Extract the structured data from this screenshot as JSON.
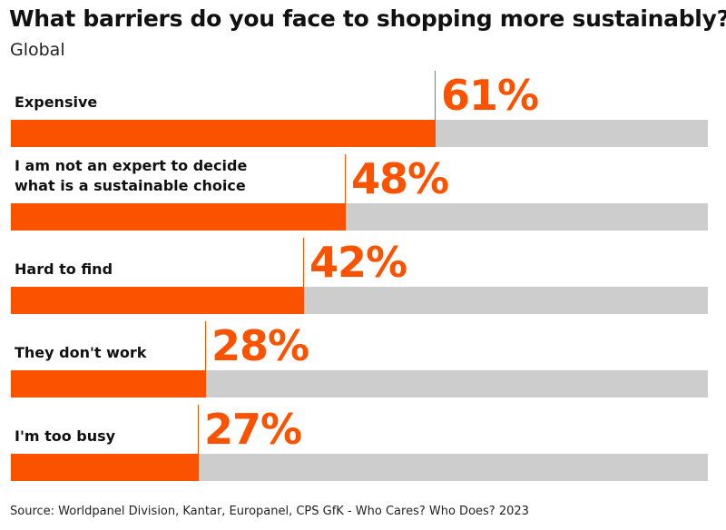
{
  "chart_data": {
    "type": "bar",
    "orientation": "horizontal",
    "title": "What barriers do you face to shopping more sustainably?",
    "subtitle": "Global",
    "categories": [
      [
        "Expensive"
      ],
      [
        "I am not an expert to decide",
        "what is a sustainable choice"
      ],
      [
        "Hard to find"
      ],
      [
        "They don't work"
      ],
      [
        "I'm too busy"
      ]
    ],
    "values": [
      61,
      48,
      42,
      28,
      27
    ],
    "value_labels": [
      "61%",
      "48%",
      "42%",
      "28%",
      "27%"
    ],
    "xlim": [
      0,
      100
    ],
    "unit": "%",
    "grid": false,
    "legend": "none",
    "source": "Source: Worldpanel Division, Kantar, Europanel, CPS GfK - Who Cares? Who Does? 2023"
  },
  "colors": {
    "bar_fill": "#fb5200",
    "bar_track": "#cdcdcd",
    "value_text": "#fb5200"
  }
}
